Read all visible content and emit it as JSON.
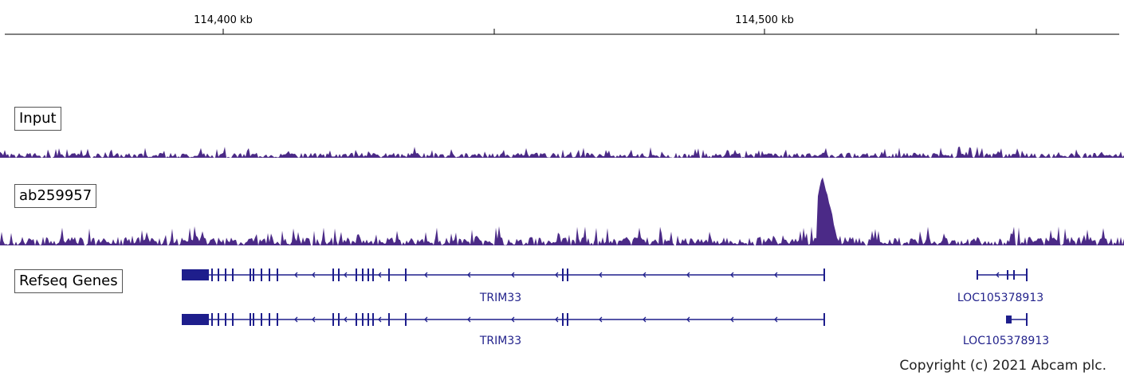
{
  "ruler": {
    "ticks": [
      "114,400 kb",
      "114,500 kb"
    ]
  },
  "tracks": {
    "input": {
      "label": "Input",
      "color": "#4b2a87"
    },
    "chip": {
      "label": "ab259957",
      "color": "#4b2a87"
    },
    "refseq": {
      "label": "Refseq Genes",
      "color": "#1e1e8c"
    }
  },
  "genes": [
    {
      "name": "TRIM33"
    },
    {
      "name": "LOC105378913"
    },
    {
      "name": "TRIM33"
    },
    {
      "name": "LOC105378913"
    }
  ],
  "copyright": "Copyright (c) 2021 Abcam plc."
}
